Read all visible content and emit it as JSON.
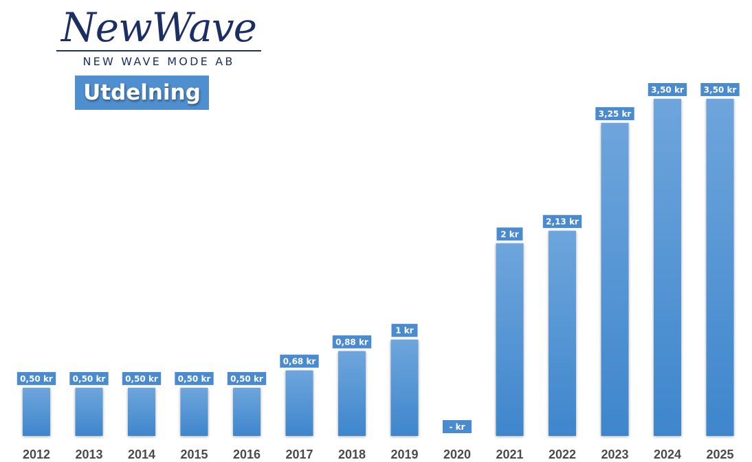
{
  "logo": {
    "script_text": "NewWave",
    "subtitle_text": "NEW WAVE MODE AB"
  },
  "title_box": {
    "text": "Utdelning"
  },
  "colors": {
    "bar_top": "#6ea5dc",
    "bar_bottom": "#3e86cc",
    "label_bg": "#4a8bd0",
    "title_bg": "#4f8fd0",
    "logo": "#1b2f63"
  },
  "chart_data": {
    "type": "bar",
    "title": "Utdelning",
    "categories": [
      "2012",
      "2013",
      "2014",
      "2015",
      "2016",
      "2017",
      "2018",
      "2019",
      "2020",
      "2021",
      "2022",
      "2023",
      "2024",
      "2025"
    ],
    "series": [
      {
        "values": [
          0.5,
          0.5,
          0.5,
          0.5,
          0.5,
          0.68,
          0.88,
          1.0,
          0,
          2.0,
          2.13,
          3.25,
          3.5,
          3.5
        ],
        "data_labels": [
          "0,50 kr",
          "0,50 kr",
          "0,50 kr",
          "0,50 kr",
          "0,50 kr",
          "0,68 kr",
          "0,88 kr",
          "1 kr",
          "-  kr",
          "2 kr",
          "2,13 kr",
          "3,25 kr",
          "3,50 kr",
          "3,50 kr"
        ]
      }
    ],
    "xlabel": "",
    "ylabel": "",
    "ylim": [
      0,
      3.5
    ],
    "grid": false,
    "legend": "none"
  }
}
